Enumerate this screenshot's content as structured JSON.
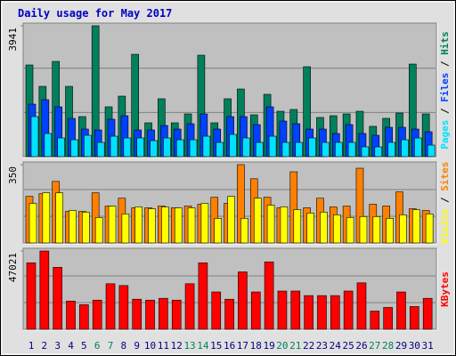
{
  "title": "Daily usage for May 2017",
  "legend_separator": " / ",
  "chart_data": [
    {
      "type": "bar",
      "ylim": [
        0,
        3941
      ],
      "yticks": [
        3941
      ],
      "series": [
        {
          "name": "Hits",
          "color": "#00805c",
          "values": [
            2761,
            2117,
            2868,
            2117,
            1206,
            3941,
            1501,
            1823,
            3083,
            1019,
            1743,
            1019,
            1287,
            3056,
            1019,
            1743,
            2037,
            1260,
            1877,
            1367,
            1421,
            2708,
            1180,
            1233,
            1287,
            1367,
            912,
            1153,
            1314,
            2788,
            1287
          ]
        },
        {
          "name": "Files",
          "color": "#0040ff",
          "values": [
            1581,
            1715,
            1501,
            1152,
            831,
            804,
            1126,
            1233,
            804,
            804,
            938,
            831,
            992,
            1286,
            831,
            1206,
            1206,
            965,
            1501,
            1072,
            992,
            831,
            831,
            697,
            965,
            697,
            643,
            884,
            884,
            831,
            750
          ]
        },
        {
          "name": "Pages",
          "color": "#00e0ff",
          "values": [
            1206,
            697,
            563,
            509,
            643,
            429,
            616,
            563,
            563,
            482,
            563,
            509,
            509,
            616,
            429,
            670,
            563,
            429,
            616,
            429,
            429,
            563,
            429,
            429,
            429,
            295,
            295,
            429,
            509,
            563,
            348
          ]
        }
      ]
    },
    {
      "type": "bar",
      "ylim": [
        0,
        350
      ],
      "yticks": [
        350
      ],
      "series": [
        {
          "name": "Sites",
          "color": "#ff8000",
          "values": [
            208,
            220,
            275,
            141,
            141,
            224,
            165,
            200,
            157,
            157,
            165,
            157,
            165,
            173,
            204,
            177,
            350,
            287,
            204,
            157,
            318,
            157,
            200,
            161,
            165,
            334,
            173,
            165,
            228,
            153,
            145
          ]
        },
        {
          "name": "Visits",
          "color": "#ffff00",
          "values": [
            177,
            224,
            224,
            145,
            138,
            114,
            165,
            130,
            161,
            153,
            161,
            157,
            157,
            177,
            110,
            208,
            110,
            200,
            169,
            161,
            149,
            134,
            138,
            126,
            114,
            118,
            118,
            110,
            126,
            149,
            130
          ]
        }
      ]
    },
    {
      "type": "bar",
      "ylim": [
        0,
        47021
      ],
      "yticks": [
        47021
      ],
      "categories": [
        "1",
        "2",
        "3",
        "4",
        "5",
        "6",
        "7",
        "8",
        "9",
        "10",
        "11",
        "12",
        "13",
        "14",
        "15",
        "16",
        "17",
        "18",
        "19",
        "20",
        "21",
        "22",
        "23",
        "24",
        "25",
        "26",
        "27",
        "28",
        "29",
        "30",
        "31"
      ],
      "category_colors": [
        "#000080",
        "#000080",
        "#000080",
        "#000080",
        "#000080",
        "#00805c",
        "#00805c",
        "#000080",
        "#000080",
        "#000080",
        "#000080",
        "#000080",
        "#00805c",
        "#00805c",
        "#000080",
        "#000080",
        "#000080",
        "#000080",
        "#000080",
        "#00805c",
        "#00805c",
        "#000080",
        "#000080",
        "#000080",
        "#000080",
        "#000080",
        "#00805c",
        "#00805c",
        "#000080",
        "#000080",
        "#000080"
      ],
      "series": [
        {
          "name": "KBytes",
          "color": "#ff0000",
          "values": [
            39931,
            47021,
            37196,
            16957,
            14769,
            17504,
            27350,
            26256,
            18051,
            17504,
            18598,
            17504,
            27350,
            39931,
            22427,
            18051,
            34461,
            22427,
            40478,
            22974,
            22974,
            20239,
            20239,
            20239,
            22974,
            27897,
            10940,
            13128,
            22427,
            13675,
            18598
          ]
        }
      ]
    }
  ]
}
